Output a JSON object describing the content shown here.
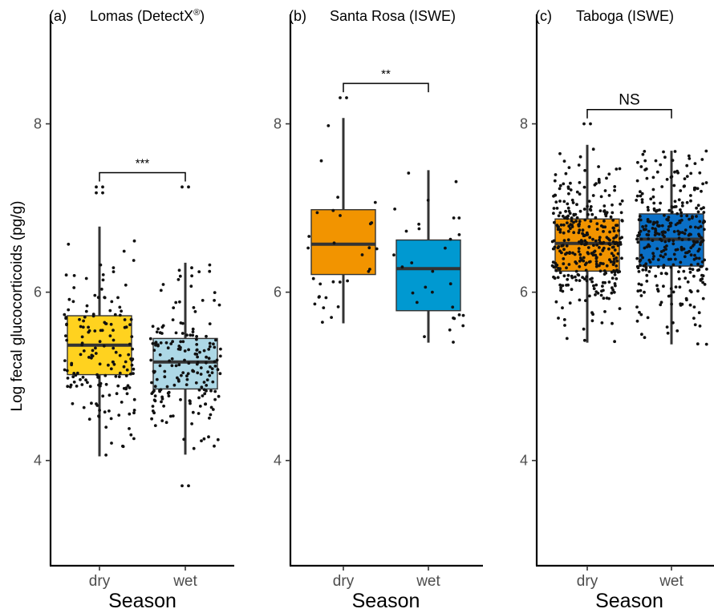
{
  "chart_data": {
    "type": "box",
    "ylabel": "Log fecal glucocorticoids (pg/g)",
    "xlabel": "Season",
    "ylim": [
      2.75,
      9.3
    ],
    "yticks": [
      4,
      6,
      8
    ],
    "panels": [
      {
        "tag": "(a)",
        "title": "Lomas (DetectX",
        "title_sup": "®",
        "title_end": ")",
        "xlabel": "Season",
        "categories": [
          "dry",
          "wet"
        ],
        "series": [
          {
            "category": "dry",
            "color": "#FFD21F",
            "n": 170,
            "seed": 11,
            "min": 4.05,
            "q1": 5.02,
            "median": 5.37,
            "q3": 5.72,
            "max": 6.78,
            "outliers": [
              7.25,
              7.25,
              7.18,
              7.18
            ]
          },
          {
            "category": "wet",
            "color": "#ADD8E6",
            "n": 190,
            "seed": 23,
            "min": 4.07,
            "q1": 4.85,
            "median": 5.17,
            "q3": 5.45,
            "max": 6.35,
            "outliers": [
              7.25,
              7.25,
              3.7,
              3.7
            ]
          }
        ],
        "significance": "***"
      },
      {
        "tag": "(b)",
        "title": "Santa Rosa (ISWE)",
        "xlabel": "Season",
        "categories": [
          "dry",
          "wet"
        ],
        "series": [
          {
            "category": "dry",
            "color": "#F29400",
            "n": 30,
            "seed": 37,
            "min": 5.63,
            "q1": 6.21,
            "median": 6.57,
            "q3": 6.98,
            "max": 8.07,
            "outliers": [
              8.31,
              8.31
            ]
          },
          {
            "category": "wet",
            "color": "#0099D1",
            "n": 30,
            "seed": 41,
            "min": 5.4,
            "q1": 5.78,
            "median": 6.28,
            "q3": 6.62,
            "max": 7.45,
            "outliers": []
          }
        ],
        "significance": "**"
      },
      {
        "tag": "(c)",
        "title": "Taboga (ISWE)",
        "xlabel": "Season",
        "categories": [
          "dry",
          "wet"
        ],
        "series": [
          {
            "category": "dry",
            "color": "#F29400",
            "n": 360,
            "seed": 53,
            "min": 5.4,
            "q1": 6.25,
            "median": 6.58,
            "q3": 6.87,
            "max": 7.75,
            "outliers": [
              8.0,
              8.0
            ]
          },
          {
            "category": "wet",
            "color": "#0A6FC6",
            "n": 340,
            "seed": 67,
            "min": 5.38,
            "q1": 6.31,
            "median": 6.63,
            "q3": 6.93,
            "max": 7.68,
            "outliers": []
          }
        ],
        "significance": "NS"
      }
    ]
  }
}
